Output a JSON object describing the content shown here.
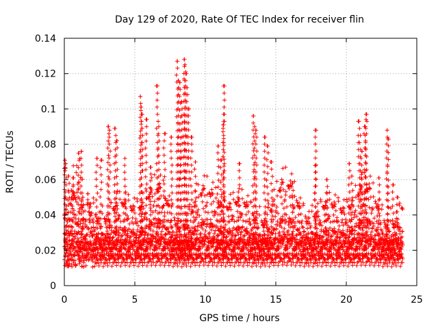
{
  "chart_data": {
    "type": "scatter",
    "title": "Day 129 of 2020, Rate Of TEC Index for receiver flin",
    "xlabel": "GPS time / hours",
    "ylabel": "ROTI / TECUs",
    "xlim": [
      0,
      25
    ],
    "ylim": [
      0,
      0.14
    ],
    "x_ticks": [
      "0",
      "5",
      "10",
      "15",
      "20",
      "25"
    ],
    "y_ticks": [
      "0",
      "0.02",
      "0.04",
      "0.06",
      "0.08",
      "0.1",
      "0.12",
      "0.14"
    ],
    "grid": true,
    "marker": "plus",
    "colors": {
      "series": "#ff0000",
      "grid": "#a0a0a0",
      "axis": "#000000"
    },
    "series": [
      {
        "x_start": 0,
        "x_end": 24,
        "x_step": 0.02,
        "baseline": 0.017,
        "points": [
          [
            0.05,
            0.071
          ],
          [
            0.1,
            0.069
          ],
          [
            0.3,
            0.062
          ],
          [
            0.5,
            0.054
          ],
          [
            0.6,
            0.061
          ],
          [
            1.0,
            0.075
          ],
          [
            1.2,
            0.076
          ],
          [
            1.3,
            0.05
          ],
          [
            2.3,
            0.072
          ],
          [
            2.6,
            0.071
          ],
          [
            3.1,
            0.09
          ],
          [
            3.2,
            0.088
          ],
          [
            3.6,
            0.089
          ],
          [
            3.7,
            0.082
          ],
          [
            4.3,
            0.072
          ],
          [
            5.4,
            0.107
          ],
          [
            5.45,
            0.101
          ],
          [
            5.5,
            0.097
          ],
          [
            5.8,
            0.094
          ],
          [
            6.1,
            0.067
          ],
          [
            6.6,
            0.113
          ],
          [
            6.7,
            0.09
          ],
          [
            7.1,
            0.086
          ],
          [
            7.6,
            0.084
          ],
          [
            8.0,
            0.127
          ],
          [
            8.1,
            0.116
          ],
          [
            8.2,
            0.115
          ],
          [
            8.3,
            0.104
          ],
          [
            8.5,
            0.128
          ],
          [
            8.55,
            0.125
          ],
          [
            8.6,
            0.12
          ],
          [
            8.7,
            0.112
          ],
          [
            8.8,
            0.1
          ],
          [
            9.0,
            0.084
          ],
          [
            9.3,
            0.07
          ],
          [
            10.9,
            0.079
          ],
          [
            11.1,
            0.071
          ],
          [
            11.3,
            0.113
          ],
          [
            11.3,
            0.097
          ],
          [
            11.3,
            0.091
          ],
          [
            12.4,
            0.069
          ],
          [
            13.4,
            0.096
          ],
          [
            13.5,
            0.09
          ],
          [
            13.6,
            0.088
          ],
          [
            14.2,
            0.084
          ],
          [
            14.4,
            0.079
          ],
          [
            14.7,
            0.07
          ],
          [
            16.2,
            0.058
          ],
          [
            17.8,
            0.088
          ],
          [
            17.8,
            0.068
          ],
          [
            18.6,
            0.06
          ],
          [
            20.2,
            0.069
          ],
          [
            20.4,
            0.062
          ],
          [
            20.9,
            0.093
          ],
          [
            21.0,
            0.085
          ],
          [
            21.1,
            0.076
          ],
          [
            21.4,
            0.097
          ],
          [
            21.4,
            0.094
          ],
          [
            21.3,
            0.09
          ],
          [
            22.3,
            0.061
          ],
          [
            22.9,
            0.088
          ],
          [
            22.95,
            0.083
          ],
          [
            23.3,
            0.057
          ],
          [
            23.6,
            0.05
          ]
        ]
      }
    ]
  }
}
